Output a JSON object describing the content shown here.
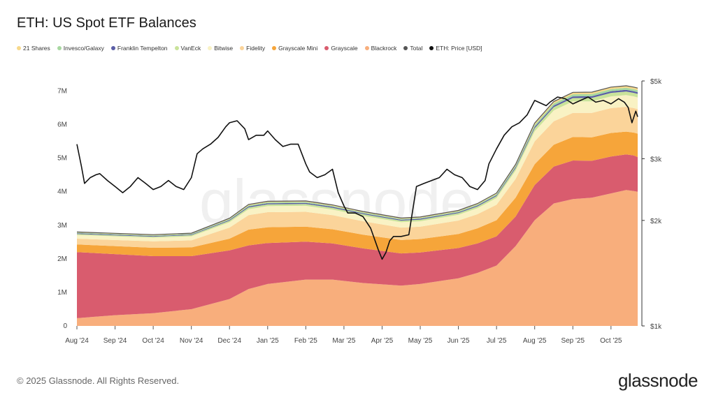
{
  "title": "ETH: US Spot ETF Balances",
  "legend": [
    {
      "label": "21 Shares",
      "color": "#f7d98b"
    },
    {
      "label": "Invesco/Galaxy",
      "color": "#a7d8a0"
    },
    {
      "label": "Franklin Tempelton",
      "color": "#5b5ea6"
    },
    {
      "label": "VanEck",
      "color": "#c9e39a"
    },
    {
      "label": "Bitwise",
      "color": "#f9f2c4"
    },
    {
      "label": "Fidelity",
      "color": "#fbd49a"
    },
    {
      "label": "Grayscale Mini",
      "color": "#f6a53a"
    },
    {
      "label": "Grayscale",
      "color": "#d95c6e"
    },
    {
      "label": "Blackrock",
      "color": "#f8ae7c"
    },
    {
      "label": "Total",
      "color": "#555555"
    },
    {
      "label": "ETH: Price [USD]",
      "color": "#111111"
    }
  ],
  "chart_data": {
    "type": "area",
    "title": "ETH: US Spot ETF Balances",
    "x_ticks": [
      "Aug '24",
      "Sep '24",
      "Oct '24",
      "Nov '24",
      "Dec '24",
      "Jan '25",
      "Feb '25",
      "Mar '25",
      "Apr '25",
      "May '25",
      "Jun '25",
      "Jul '25",
      "Aug '25",
      "Sep '25",
      "Oct '25"
    ],
    "y_left_ticks": [
      "0",
      "1M",
      "2M",
      "3M",
      "4M",
      "5M",
      "6M",
      "7M"
    ],
    "y_left_range": [
      0,
      7300000
    ],
    "y_right_ticks": [
      "$1k",
      "$2k",
      "$3k",
      "$5k"
    ],
    "y_right_values": [
      1000,
      2000,
      3000,
      5000
    ],
    "y_right_scale": "log",
    "y_right_range": [
      1000,
      5000
    ],
    "x_range_months": [
      0,
      14.7
    ],
    "stack_order": [
      "Blackrock",
      "Grayscale",
      "Grayscale Mini",
      "Fidelity",
      "Bitwise",
      "VanEck",
      "Franklin Tempelton",
      "Invesco/Galaxy",
      "21 Shares"
    ],
    "series": [
      {
        "name": "Blackrock",
        "x": [
          0,
          1,
          2,
          3,
          4,
          4.5,
          5,
          6,
          6.7,
          7.5,
          8.5,
          9,
          10,
          10.5,
          11,
          11.5,
          12,
          12.5,
          13,
          13.5,
          14,
          14.4,
          14.6,
          14.7
        ],
        "values": [
          230000,
          320000,
          380000,
          500000,
          800000,
          1100000,
          1250000,
          1380000,
          1380000,
          1280000,
          1200000,
          1250000,
          1420000,
          1580000,
          1800000,
          2380000,
          3150000,
          3650000,
          3780000,
          3820000,
          3950000,
          4050000,
          4020000,
          4000000
        ]
      },
      {
        "name": "Grayscale",
        "x": [
          0,
          1,
          2,
          3,
          4,
          4.5,
          5,
          6,
          6.7,
          7.5,
          8.5,
          9,
          10,
          10.5,
          11,
          11.5,
          12,
          12.5,
          13,
          13.5,
          14,
          14.4,
          14.6,
          14.7
        ],
        "values": [
          1970000,
          1820000,
          1700000,
          1580000,
          1450000,
          1300000,
          1220000,
          1130000,
          1080000,
          1030000,
          960000,
          940000,
          900000,
          880000,
          870000,
          880000,
          1050000,
          1100000,
          1150000,
          1100000,
          1100000,
          1060000,
          1060000,
          1030000
        ]
      },
      {
        "name": "Grayscale Mini",
        "x": [
          0,
          1,
          2,
          3,
          4,
          4.5,
          5,
          6,
          6.7,
          7.5,
          8.5,
          9,
          10,
          10.5,
          11,
          11.5,
          12,
          12.5,
          13,
          13.5,
          14,
          14.4,
          14.6,
          14.7
        ],
        "values": [
          230000,
          240000,
          250000,
          260000,
          350000,
          470000,
          470000,
          450000,
          420000,
          410000,
          400000,
          400000,
          420000,
          450000,
          480000,
          560000,
          620000,
          650000,
          700000,
          700000,
          700000,
          680000,
          680000,
          700000
        ]
      },
      {
        "name": "Fidelity",
        "x": [
          0,
          1,
          2,
          3,
          4,
          4.5,
          5,
          6,
          6.7,
          7.5,
          8.5,
          9,
          10,
          10.5,
          11,
          11.5,
          12,
          12.5,
          13,
          13.5,
          14,
          14.4,
          14.6,
          14.7
        ],
        "values": [
          170000,
          180000,
          190000,
          210000,
          330000,
          430000,
          450000,
          440000,
          420000,
          400000,
          370000,
          370000,
          400000,
          420000,
          460000,
          560000,
          680000,
          700000,
          720000,
          730000,
          740000,
          740000,
          730000,
          730000
        ]
      },
      {
        "name": "Bitwise",
        "x": [
          0,
          1,
          2,
          3,
          4,
          4.5,
          5,
          6,
          6.7,
          7.5,
          8.5,
          9,
          10,
          10.5,
          11,
          11.5,
          12,
          12.5,
          13,
          13.5,
          14,
          14.4,
          14.6,
          14.7
        ],
        "values": [
          110000,
          110000,
          110000,
          120000,
          160000,
          180000,
          180000,
          180000,
          170000,
          160000,
          160000,
          160000,
          170000,
          180000,
          200000,
          250000,
          300000,
          320000,
          340000,
          340000,
          350000,
          350000,
          350000,
          350000
        ]
      },
      {
        "name": "VanEck",
        "x": [
          0,
          1,
          2,
          3,
          4,
          4.5,
          5,
          6,
          6.7,
          7.5,
          8.5,
          9,
          10,
          10.5,
          11,
          11.5,
          12,
          12.5,
          13,
          13.5,
          14,
          14.4,
          14.6,
          14.7
        ],
        "values": [
          30000,
          30000,
          30000,
          35000,
          45000,
          50000,
          55000,
          55000,
          52000,
          50000,
          48000,
          48000,
          50000,
          52000,
          58000,
          70000,
          90000,
          100000,
          100000,
          105000,
          105000,
          105000,
          105000,
          105000
        ]
      },
      {
        "name": "Franklin Tempelton",
        "x": [
          0,
          1,
          2,
          3,
          4,
          4.5,
          5,
          6,
          6.7,
          7.5,
          8.5,
          9,
          10,
          10.5,
          11,
          11.5,
          12,
          12.5,
          13,
          13.5,
          14,
          14.4,
          14.6,
          14.7
        ],
        "values": [
          20000,
          20000,
          20000,
          20000,
          25000,
          30000,
          30000,
          30000,
          28000,
          27000,
          26000,
          26000,
          27000,
          28000,
          30000,
          35000,
          45000,
          48000,
          50000,
          50000,
          50000,
          50000,
          50000,
          50000
        ]
      },
      {
        "name": "Invesco/Galaxy",
        "x": [
          0,
          1,
          2,
          3,
          4,
          4.5,
          5,
          6,
          6.7,
          7.5,
          8.5,
          9,
          10,
          10.5,
          11,
          11.5,
          12,
          12.5,
          13,
          13.5,
          14,
          14.4,
          14.6,
          14.7
        ],
        "values": [
          20000,
          20000,
          20000,
          20000,
          25000,
          30000,
          30000,
          30000,
          28000,
          27000,
          26000,
          26000,
          28000,
          30000,
          32000,
          40000,
          55000,
          60000,
          62000,
          62000,
          62000,
          62000,
          62000,
          62000
        ]
      },
      {
        "name": "21 Shares",
        "x": [
          0,
          1,
          2,
          3,
          4,
          4.5,
          5,
          6,
          6.7,
          7.5,
          8.5,
          9,
          10,
          10.5,
          11,
          11.5,
          12,
          12.5,
          13,
          13.5,
          14,
          14.4,
          14.6,
          14.7
        ],
        "values": [
          20000,
          20000,
          20000,
          20000,
          25000,
          30000,
          30000,
          30000,
          28000,
          27000,
          26000,
          26000,
          27000,
          28000,
          30000,
          40000,
          55000,
          60000,
          60000,
          60000,
          60000,
          60000,
          60000,
          60000
        ]
      }
    ],
    "price": {
      "name": "ETH: Price [USD]",
      "x": [
        0,
        0.12,
        0.2,
        0.35,
        0.5,
        0.6,
        0.8,
        1.0,
        1.2,
        1.4,
        1.6,
        1.8,
        2.0,
        2.2,
        2.4,
        2.6,
        2.8,
        3.0,
        3.15,
        3.3,
        3.5,
        3.7,
        3.9,
        4.0,
        4.2,
        4.4,
        4.5,
        4.7,
        4.9,
        5.0,
        5.2,
        5.4,
        5.6,
        5.8,
        6.0,
        6.1,
        6.3,
        6.5,
        6.7,
        6.85,
        7.0,
        7.1,
        7.3,
        7.5,
        7.7,
        7.9,
        8.0,
        8.1,
        8.2,
        8.3,
        8.5,
        8.7,
        8.9,
        9.1,
        9.3,
        9.5,
        9.7,
        9.9,
        10.1,
        10.3,
        10.5,
        10.7,
        10.8,
        11.0,
        11.2,
        11.4,
        11.6,
        11.8,
        12.0,
        12.2,
        12.3,
        12.4,
        12.6,
        12.8,
        13.0,
        13.2,
        13.4,
        13.6,
        13.8,
        14.0,
        14.2,
        14.35,
        14.45,
        14.55,
        14.65,
        14.7
      ],
      "values": [
        3300,
        2850,
        2550,
        2650,
        2700,
        2720,
        2600,
        2500,
        2400,
        2500,
        2650,
        2550,
        2450,
        2500,
        2600,
        2500,
        2450,
        2650,
        3100,
        3200,
        3300,
        3450,
        3700,
        3800,
        3850,
        3650,
        3400,
        3500,
        3500,
        3600,
        3400,
        3250,
        3300,
        3300,
        2900,
        2750,
        2650,
        2700,
        2800,
        2400,
        2200,
        2100,
        2100,
        2050,
        1900,
        1650,
        1550,
        1620,
        1750,
        1800,
        1800,
        1820,
        2500,
        2550,
        2600,
        2650,
        2800,
        2700,
        2650,
        2500,
        2450,
        2600,
        2900,
        3200,
        3500,
        3700,
        3800,
        4000,
        4400,
        4300,
        4250,
        4350,
        4500,
        4450,
        4300,
        4400,
        4500,
        4350,
        4400,
        4300,
        4450,
        4350,
        4200,
        3800,
        4100,
        3950
      ]
    }
  },
  "footer": "© 2025 Glassnode. All Rights Reserved.",
  "brand": "glassnode",
  "watermark": "glassnode"
}
